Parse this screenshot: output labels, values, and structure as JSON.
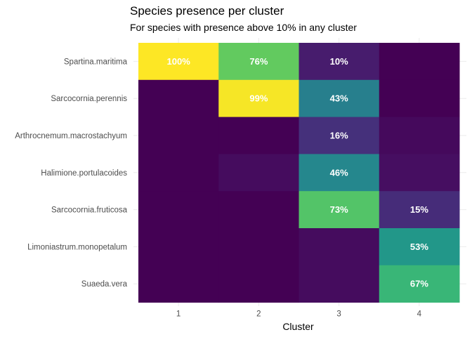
{
  "chart_data": {
    "type": "heatmap",
    "title": "Species presence per cluster",
    "subtitle": "For species with presence above 10% in any cluster",
    "xlabel": "Cluster",
    "ylabel": "",
    "x_categories": [
      "1",
      "2",
      "3",
      "4"
    ],
    "y_categories": [
      "Spartina.maritima",
      "Sarcocornia.perennis",
      "Arthrocnemum.macrostachyum",
      "Halimione.portulacoides",
      "Sarcocornia.fruticosa",
      "Limoniastrum.monopetalum",
      "Suaeda.vera"
    ],
    "value_range": [
      0,
      100
    ],
    "colormap": "viridis",
    "label_threshold": 10,
    "values": [
      [
        100,
        76,
        10,
        0
      ],
      [
        0,
        99,
        43,
        0
      ],
      [
        0,
        0,
        16,
        3
      ],
      [
        0,
        4,
        46,
        5
      ],
      [
        0,
        0,
        73,
        15
      ],
      [
        0,
        0,
        4,
        53
      ],
      [
        0,
        0,
        4,
        67
      ]
    ],
    "grid": true,
    "legend": "none"
  }
}
